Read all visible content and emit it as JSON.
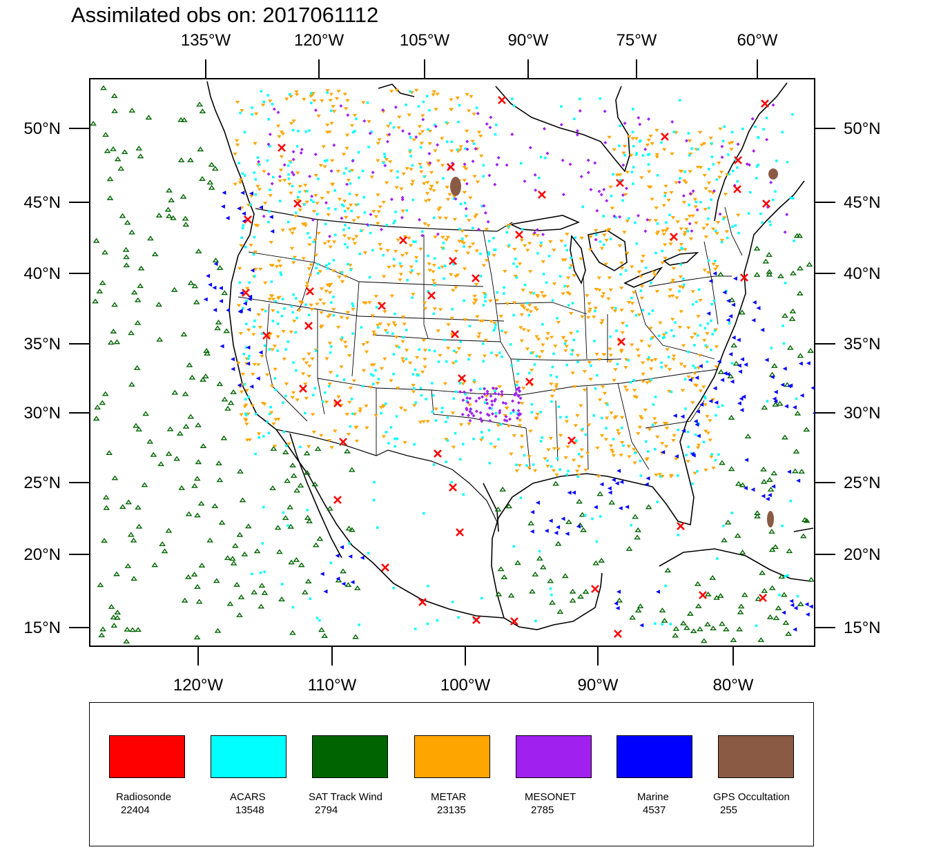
{
  "title": "Assimilated obs on: 2017061112",
  "map": {
    "top_lon_labels": [
      "135°W",
      "120°W",
      "105°W",
      "90°W",
      "75°W",
      "60°W"
    ],
    "bottom_lon_labels": [
      "120°W",
      "110°W",
      "100°W",
      "90°W",
      "80°W"
    ],
    "lat_labels": [
      "50°N",
      "45°N",
      "40°N",
      "35°N",
      "30°N",
      "25°N",
      "20°N",
      "15°N"
    ]
  },
  "legend": {
    "items": [
      {
        "name": "Radiosonde",
        "count": "22404",
        "color": "#ff0000"
      },
      {
        "name": "ACARS",
        "count": "13548",
        "color": "#00ffff"
      },
      {
        "name": "SAT Track Wind",
        "count": "2794",
        "color": "#006400"
      },
      {
        "name": "METAR",
        "count": "23135",
        "color": "#ffa500"
      },
      {
        "name": "MESONET",
        "count": "2785",
        "color": "#a020f0"
      },
      {
        "name": "Marine",
        "count": "4537",
        "color": "#0000ff"
      },
      {
        "name": "GPS Occultation",
        "count": "255",
        "color": "#8b5a44"
      }
    ]
  }
}
